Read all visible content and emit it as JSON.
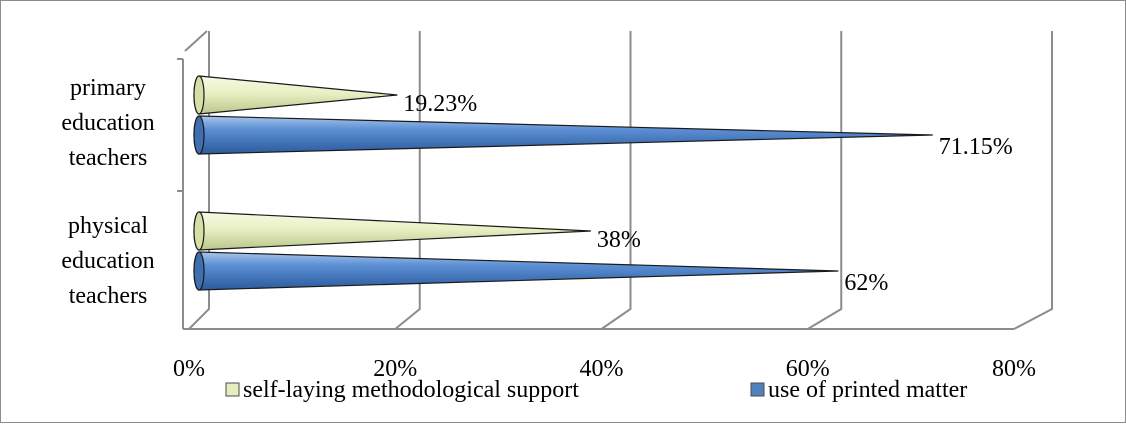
{
  "chart_data": {
    "type": "bar",
    "orientation": "horizontal",
    "shape": "cone-3d",
    "categories": [
      "primary education teachers",
      "physical education teachers"
    ],
    "category_lines": [
      [
        "primary",
        "education",
        "teachers"
      ],
      [
        "physical",
        "education",
        "teachers"
      ]
    ],
    "series": [
      {
        "name": "self-laying methodological support",
        "values": [
          19.23,
          38
        ],
        "labels": [
          "19.23%",
          "38%"
        ],
        "color": "#e6eebf"
      },
      {
        "name": "use of printed matter",
        "values": [
          71.15,
          62
        ],
        "labels": [
          "71.15%",
          "62%"
        ],
        "color": "#4f81bd"
      }
    ],
    "xticks": [
      0,
      20,
      40,
      60,
      80
    ],
    "xtick_labels": [
      "0%",
      "20%",
      "40%",
      "60%",
      "80%"
    ],
    "xlim": [
      0,
      80
    ],
    "grid": true,
    "legend_position": "bottom"
  }
}
